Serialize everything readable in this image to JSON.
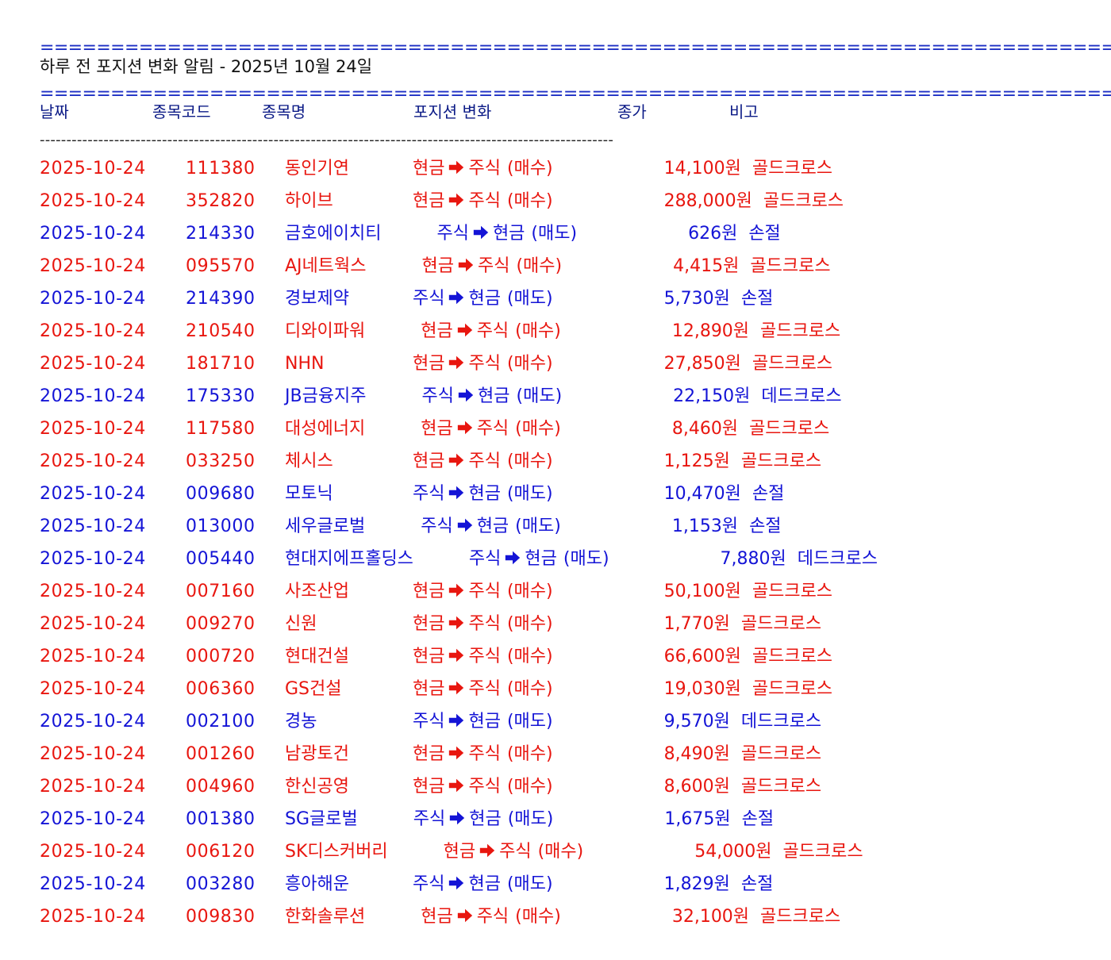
{
  "separator_double": "====================================================================================================================================================================================",
  "separator_single": "------------------------------------------------------------------------------------------------------------",
  "title": "하루 전 포지션 변화 알림 - 2025년 10월 24일",
  "headers": {
    "date": "날짜",
    "code": "종목코드",
    "name": "종목명",
    "position_change": "포지션 변화",
    "close_price": "종가",
    "note": "비고"
  },
  "colors": {
    "buy": "#e8160f",
    "sell": "#1414d6",
    "header": "#0b1a86",
    "separator_double": "#1d2fc4"
  },
  "icons": {
    "position_arrow": "right-arrow-icon"
  },
  "rows": [
    {
      "date": "2025-10-24",
      "code": "111380",
      "name": "동인기연",
      "type": "buy",
      "from": "현금",
      "to": "주식",
      "action": "(매수)",
      "price": "14,100원",
      "note": "골드크로스"
    },
    {
      "date": "2025-10-24",
      "code": "352820",
      "name": "하이브",
      "type": "buy",
      "from": "현금",
      "to": "주식",
      "action": "(매수)",
      "price": "288,000원",
      "note": "골드크로스"
    },
    {
      "date": "2025-10-24",
      "code": "214330",
      "name": "금호에이치티",
      "type": "sell",
      "from": "주식",
      "to": "현금",
      "action": "(매도)",
      "price": "626원",
      "note": "손절"
    },
    {
      "date": "2025-10-24",
      "code": "095570",
      "name": "AJ네트웍스",
      "type": "buy",
      "from": "현금",
      "to": "주식",
      "action": "(매수)",
      "price": "4,415원",
      "note": "골드크로스"
    },
    {
      "date": "2025-10-24",
      "code": "214390",
      "name": "경보제약",
      "type": "sell",
      "from": "주식",
      "to": "현금",
      "action": "(매도)",
      "price": "5,730원",
      "note": "손절"
    },
    {
      "date": "2025-10-24",
      "code": "210540",
      "name": "디와이파워",
      "type": "buy",
      "from": "현금",
      "to": "주식",
      "action": "(매수)",
      "price": "12,890원",
      "note": "골드크로스"
    },
    {
      "date": "2025-10-24",
      "code": "181710",
      "name": "NHN",
      "type": "buy",
      "from": "현금",
      "to": "주식",
      "action": "(매수)",
      "price": "27,850원",
      "note": "골드크로스"
    },
    {
      "date": "2025-10-24",
      "code": "175330",
      "name": "JB금융지주",
      "type": "sell",
      "from": "주식",
      "to": "현금",
      "action": "(매도)",
      "price": "22,150원",
      "note": "데드크로스"
    },
    {
      "date": "2025-10-24",
      "code": "117580",
      "name": "대성에너지",
      "type": "buy",
      "from": "현금",
      "to": "주식",
      "action": "(매수)",
      "price": "8,460원",
      "note": "골드크로스"
    },
    {
      "date": "2025-10-24",
      "code": "033250",
      "name": "체시스",
      "type": "buy",
      "from": "현금",
      "to": "주식",
      "action": "(매수)",
      "price": "1,125원",
      "note": "골드크로스"
    },
    {
      "date": "2025-10-24",
      "code": "009680",
      "name": "모토닉",
      "type": "sell",
      "from": "주식",
      "to": "현금",
      "action": "(매도)",
      "price": "10,470원",
      "note": "손절"
    },
    {
      "date": "2025-10-24",
      "code": "013000",
      "name": "세우글로벌",
      "type": "sell",
      "from": "주식",
      "to": "현금",
      "action": "(매도)",
      "price": "1,153원",
      "note": "손절"
    },
    {
      "date": "2025-10-24",
      "code": "005440",
      "name": "현대지에프홀딩스",
      "type": "sell",
      "from": "주식",
      "to": "현금",
      "action": "(매도)",
      "price": "7,880원",
      "note": "데드크로스"
    },
    {
      "date": "2025-10-24",
      "code": "007160",
      "name": "사조산업",
      "type": "buy",
      "from": "현금",
      "to": "주식",
      "action": "(매수)",
      "price": "50,100원",
      "note": "골드크로스"
    },
    {
      "date": "2025-10-24",
      "code": "009270",
      "name": "신원",
      "type": "buy",
      "from": "현금",
      "to": "주식",
      "action": "(매수)",
      "price": "1,770원",
      "note": "골드크로스"
    },
    {
      "date": "2025-10-24",
      "code": "000720",
      "name": "현대건설",
      "type": "buy",
      "from": "현금",
      "to": "주식",
      "action": "(매수)",
      "price": "66,600원",
      "note": "골드크로스"
    },
    {
      "date": "2025-10-24",
      "code": "006360",
      "name": "GS건설",
      "type": "buy",
      "from": "현금",
      "to": "주식",
      "action": "(매수)",
      "price": "19,030원",
      "note": "골드크로스"
    },
    {
      "date": "2025-10-24",
      "code": "002100",
      "name": "경농",
      "type": "sell",
      "from": "주식",
      "to": "현금",
      "action": "(매도)",
      "price": "9,570원",
      "note": "데드크로스"
    },
    {
      "date": "2025-10-24",
      "code": "001260",
      "name": "남광토건",
      "type": "buy",
      "from": "현금",
      "to": "주식",
      "action": "(매수)",
      "price": "8,490원",
      "note": "골드크로스"
    },
    {
      "date": "2025-10-24",
      "code": "004960",
      "name": "한신공영",
      "type": "buy",
      "from": "현금",
      "to": "주식",
      "action": "(매수)",
      "price": "8,600원",
      "note": "골드크로스"
    },
    {
      "date": "2025-10-24",
      "code": "001380",
      "name": "SG글로벌",
      "type": "sell",
      "from": "주식",
      "to": "현금",
      "action": "(매도)",
      "price": "1,675원",
      "note": "손절"
    },
    {
      "date": "2025-10-24",
      "code": "006120",
      "name": "SK디스커버리",
      "type": "buy",
      "from": "현금",
      "to": "주식",
      "action": "(매수)",
      "price": "54,000원",
      "note": "골드크로스"
    },
    {
      "date": "2025-10-24",
      "code": "003280",
      "name": "흥아해운",
      "type": "sell",
      "from": "주식",
      "to": "현금",
      "action": "(매도)",
      "price": "1,829원",
      "note": "손절"
    },
    {
      "date": "2025-10-24",
      "code": "009830",
      "name": "한화솔루션",
      "type": "buy",
      "from": "현금",
      "to": "주식",
      "action": "(매수)",
      "price": "32,100원",
      "note": "골드크로스"
    }
  ]
}
